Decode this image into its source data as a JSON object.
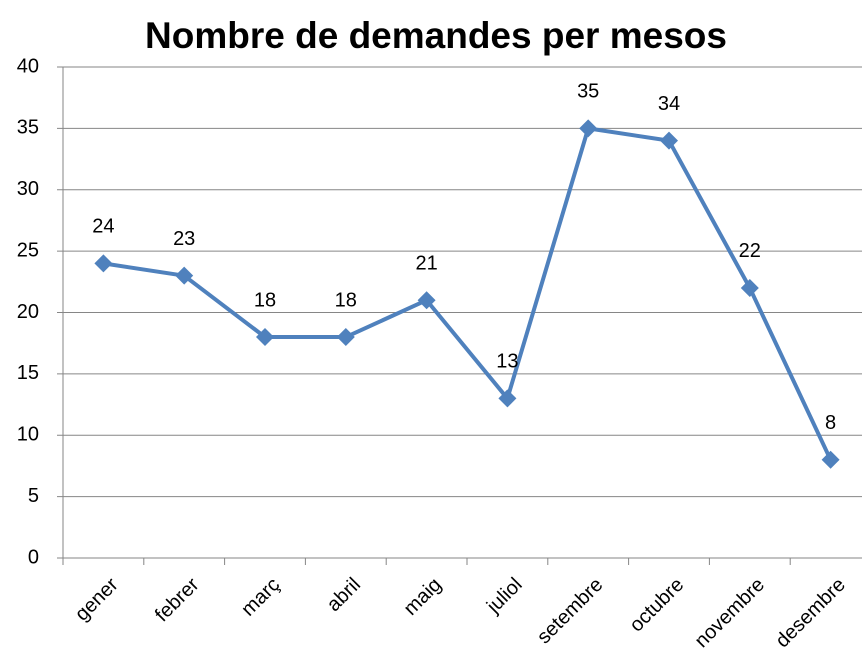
{
  "chart_data": {
    "type": "line",
    "title": "Nombre de demandes per mesos",
    "categories": [
      "gener",
      "febrer",
      "març",
      "abril",
      "maig",
      "juliol",
      "setembre",
      "octubre",
      "novembre",
      "desembre"
    ],
    "series": [
      {
        "name": "Nombre de demandes",
        "color": "#4f81bd",
        "values": [
          24,
          23,
          18,
          18,
          21,
          13,
          35,
          34,
          22,
          8
        ]
      }
    ],
    "ylim": [
      0,
      40
    ],
    "yticks": [
      0,
      5,
      10,
      15,
      20,
      25,
      30,
      35,
      40
    ],
    "grid": true
  }
}
